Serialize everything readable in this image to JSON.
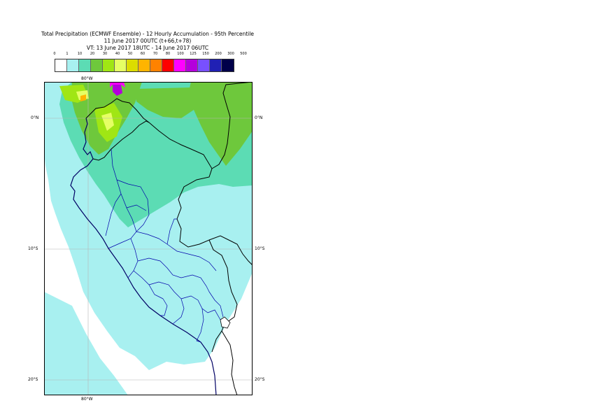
{
  "title": {
    "line1": "Total Precipitation (ECMWF Ensemble) - 12 Hourly Accumulation - 95th Percentile",
    "line2": "11 June 2017 00UTC (t+66,t+78)",
    "line3": "VT: 13 June 2017 18UTC - 14 June 2017 06UTC"
  },
  "legend": {
    "thresholds": [
      "0",
      "1",
      "10",
      "20",
      "30",
      "40",
      "50",
      "60",
      "70",
      "80",
      "100",
      "125",
      "150",
      "200",
      "300",
      "500"
    ],
    "colors": [
      "#ffffff",
      "#a8f0f0",
      "#5cdcb4",
      "#6ec83c",
      "#a0e614",
      "#e6ff64",
      "#dcdc00",
      "#ffb400",
      "#ff8200",
      "#ff0000",
      "#ff00ff",
      "#b400dc",
      "#7850ff",
      "#2020b4",
      "#00004a"
    ]
  },
  "map": {
    "colors": {
      "ocean_dry": "#ffffff",
      "light_rain": "#a8f0f0",
      "moderate_rain": "#5cdcb4",
      "green": "#6ec83c",
      "lime": "#a0e614",
      "yellow": "#e6ff64",
      "orange": "#ffb400",
      "magenta": "#ff00ff",
      "purple": "#b400dc",
      "border": "#000000",
      "admin": "#0000aa",
      "coast": "#000064",
      "grid": "#b4b4b4"
    },
    "labels": {
      "top_lon": "80°W",
      "bottom_lon": "80°W",
      "lat_0_left": "0°N",
      "lat_0_right": "0°N",
      "lat_10_left": "10°S",
      "lat_10_right": "10°S",
      "lat_20_left": "20°S",
      "lat_20_right": "20°S"
    }
  }
}
